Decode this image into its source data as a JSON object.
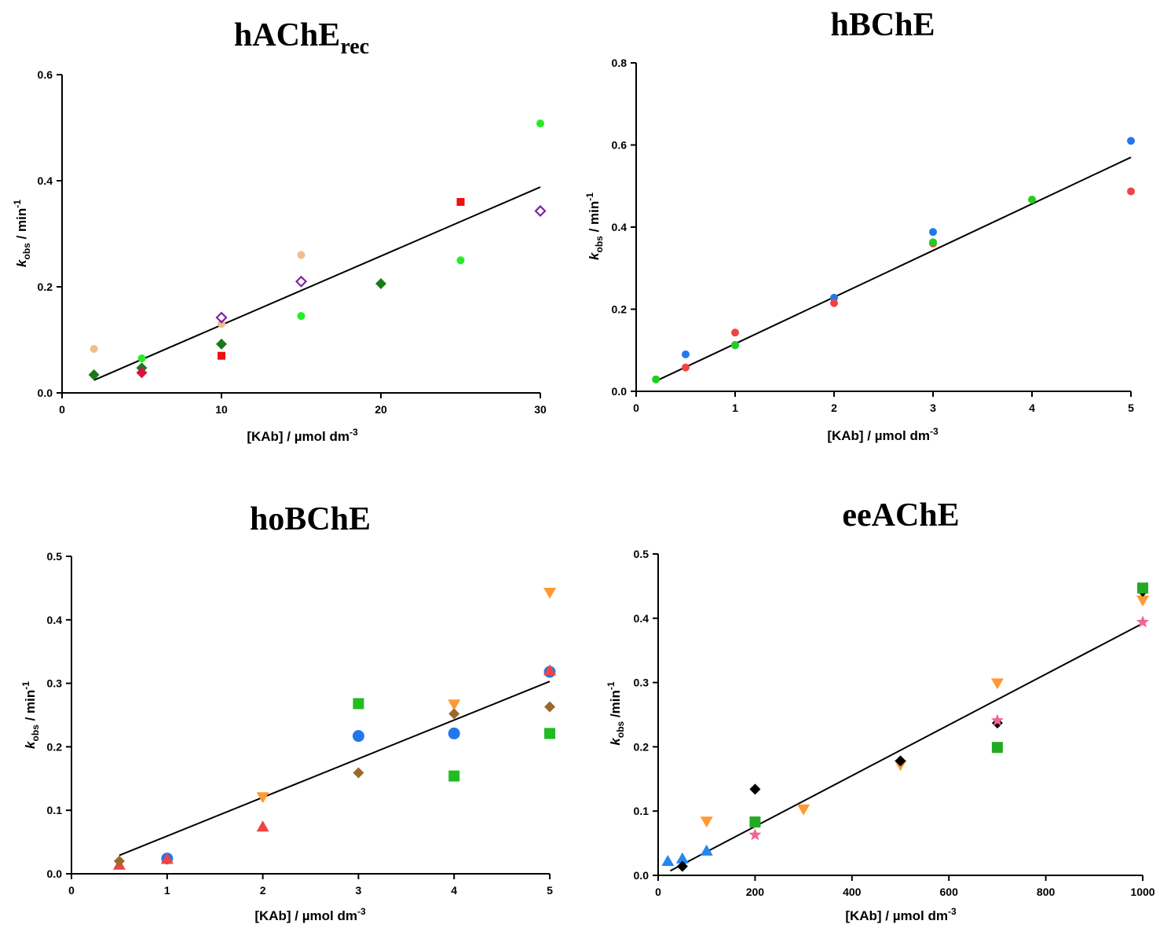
{
  "chart_data": [
    {
      "type": "scatter",
      "title": "hAChE",
      "title_subscript": "rec",
      "xlabel": "[KAb] / µmol dm",
      "xlabel_sup": "-3",
      "ylabel_k": "k",
      "ylabel_sub": "obs",
      "ylabel_rest": " / min",
      "ylabel_sup": "-1",
      "xlim": [
        0,
        30
      ],
      "ylim": [
        0,
        0.6
      ],
      "xticks": [
        "0",
        "10",
        "20",
        "30"
      ],
      "yticks": [
        "0.0",
        "0.2",
        "0.4",
        "0.6"
      ],
      "fit": {
        "x": [
          2,
          30
        ],
        "y": [
          0.024,
          0.388
        ]
      },
      "series": [
        {
          "marker": "circle-small",
          "color": "#f2bd8a",
          "x": [
            2,
            10,
            15
          ],
          "y": [
            0.083,
            0.13,
            0.26
          ]
        },
        {
          "marker": "circle-small",
          "color": "#22ee22",
          "x": [
            5,
            15,
            25,
            30
          ],
          "y": [
            0.065,
            0.145,
            0.25,
            0.508
          ]
        },
        {
          "marker": "square-small",
          "color": "#ee1111",
          "x": [
            10,
            25
          ],
          "y": [
            0.07,
            0.36
          ]
        },
        {
          "marker": "diamond-hollow",
          "color": "#7b22a8",
          "x": [
            10,
            15,
            30
          ],
          "y": [
            0.142,
            0.21,
            0.343
          ]
        },
        {
          "marker": "diamond-filled",
          "color": "#1a7a1a",
          "x": [
            2,
            5,
            10,
            20
          ],
          "y": [
            0.034,
            0.047,
            0.092,
            0.206
          ]
        },
        {
          "marker": "diamond-filled",
          "color": "#dd1144",
          "x": [
            5
          ],
          "y": [
            0.038
          ]
        }
      ]
    },
    {
      "type": "scatter",
      "title": "hBChE",
      "title_subscript": "",
      "xlabel": "[KAb] / µmol dm",
      "xlabel_sup": "-3",
      "ylabel_k": "k",
      "ylabel_sub": "obs",
      "ylabel_rest": " / min",
      "ylabel_sup": "-1",
      "xlim": [
        0,
        5
      ],
      "ylim": [
        0,
        0.8
      ],
      "xticks": [
        "0",
        "1",
        "2",
        "3",
        "4",
        "5"
      ],
      "yticks": [
        "0.0",
        "0.2",
        "0.4",
        "0.6",
        "0.8"
      ],
      "fit": {
        "x": [
          0.2,
          5
        ],
        "y": [
          0.025,
          0.57
        ]
      },
      "series": [
        {
          "marker": "circle-small",
          "color": "#2277ee",
          "x": [
            0.5,
            1,
            2,
            3,
            5
          ],
          "y": [
            0.09,
            0.113,
            0.228,
            0.388,
            0.61
          ]
        },
        {
          "marker": "circle-small",
          "color": "#ee4444",
          "x": [
            0.5,
            1,
            2,
            3,
            5
          ],
          "y": [
            0.058,
            0.143,
            0.215,
            0.36,
            0.487
          ]
        },
        {
          "marker": "circle-small",
          "color": "#22cc22",
          "x": [
            0.2,
            1,
            3,
            4
          ],
          "y": [
            0.029,
            0.112,
            0.363,
            0.467
          ]
        }
      ]
    },
    {
      "type": "scatter",
      "title": "hoBChE",
      "title_subscript": "",
      "xlabel": "[KAb] / µmol dm",
      "xlabel_sup": "-3",
      "ylabel_k": "k",
      "ylabel_sub": "obs",
      "ylabel_rest": " / min",
      "ylabel_sup": "-1",
      "xlim": [
        0,
        5
      ],
      "ylim": [
        0,
        0.5
      ],
      "xticks": [
        "0",
        "1",
        "2",
        "3",
        "4",
        "5"
      ],
      "yticks": [
        "0.0",
        "0.1",
        "0.2",
        "0.3",
        "0.4",
        "0.5"
      ],
      "fit": {
        "x": [
          0.5,
          5
        ],
        "y": [
          0.029,
          0.303
        ]
      },
      "series": [
        {
          "marker": "circle-large",
          "color": "#2277ee",
          "x": [
            1,
            3,
            4,
            5
          ],
          "y": [
            0.024,
            0.217,
            0.221,
            0.318
          ]
        },
        {
          "marker": "triangle-up",
          "color": "#ee4444",
          "x": [
            0.5,
            1,
            2,
            5
          ],
          "y": [
            0.014,
            0.023,
            0.074,
            0.32
          ]
        },
        {
          "marker": "triangle-down",
          "color": "#ff9933",
          "x": [
            2,
            4,
            5
          ],
          "y": [
            0.121,
            0.267,
            0.443
          ]
        },
        {
          "marker": "square-large",
          "color": "#22bb22",
          "x": [
            3,
            4,
            5
          ],
          "y": [
            0.268,
            0.154,
            0.221
          ]
        },
        {
          "marker": "diamond-filled",
          "color": "#9a6a2a",
          "x": [
            0.5,
            3,
            4,
            5
          ],
          "y": [
            0.02,
            0.159,
            0.252,
            0.263
          ]
        }
      ]
    },
    {
      "type": "scatter",
      "title": "eeAChE",
      "title_subscript": "",
      "xlabel": "[KAb] / µmol dm",
      "xlabel_sup": "-3",
      "ylabel_k": "k",
      "ylabel_sub": "obs",
      "ylabel_rest": " /min",
      "ylabel_sup": "-1",
      "xlim": [
        0,
        1000
      ],
      "ylim": [
        0,
        0.5
      ],
      "xticks": [
        "0",
        "200",
        "400",
        "600",
        "800",
        "1000"
      ],
      "yticks": [
        "0.0",
        "0.1",
        "0.2",
        "0.3",
        "0.4",
        "0.5"
      ],
      "fit": {
        "x": [
          25,
          1000
        ],
        "y": [
          0.007,
          0.392
        ]
      },
      "series": [
        {
          "marker": "triangle-up",
          "color": "#2288ee",
          "x": [
            20,
            50,
            100
          ],
          "y": [
            0.022,
            0.026,
            0.038
          ]
        },
        {
          "marker": "triangle-down",
          "color": "#ff9933",
          "x": [
            100,
            300,
            500,
            700,
            1000
          ],
          "y": [
            0.084,
            0.103,
            0.172,
            0.299,
            0.428
          ]
        },
        {
          "marker": "diamond-filled",
          "color": "#000000",
          "x": [
            50,
            200,
            500,
            700,
            1000
          ],
          "y": [
            0.014,
            0.134,
            0.178,
            0.237,
            0.442
          ]
        },
        {
          "marker": "square-large",
          "color": "#22aa22",
          "x": [
            200,
            700,
            1000
          ],
          "y": [
            0.083,
            0.199,
            0.447
          ]
        },
        {
          "marker": "star",
          "color": "#ee6699",
          "x": [
            200,
            700,
            1000
          ],
          "y": [
            0.063,
            0.241,
            0.394
          ]
        }
      ]
    }
  ]
}
